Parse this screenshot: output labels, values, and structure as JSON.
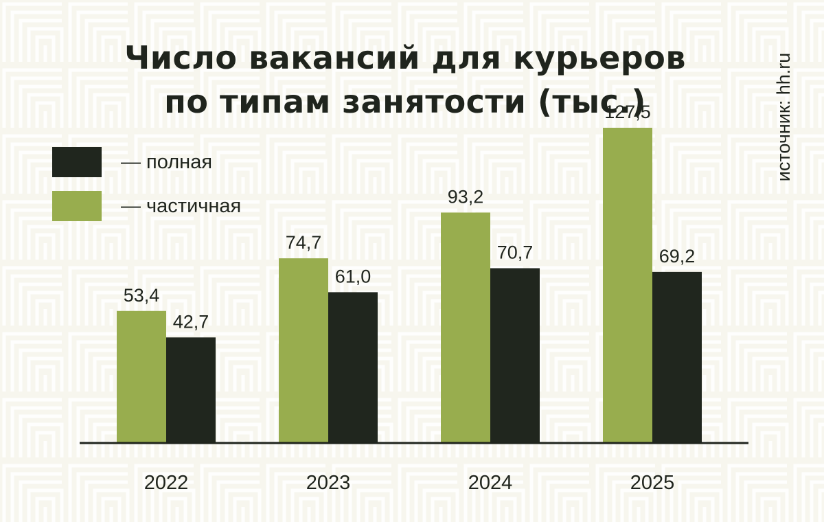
{
  "title_lines": [
    "Число вакансий для курьеров",
    "по типам занятости (тыс.)"
  ],
  "source": "источник: hh.ru",
  "colors": {
    "full": "#20261e",
    "partial": "#98ad4e",
    "background": "#f7f6ee",
    "pattern": "#ffffff"
  },
  "chart_data": {
    "type": "bar",
    "title": "Число вакансий для курьеров по типам занятости (тыс.)",
    "categories": [
      "2022",
      "2023",
      "2024",
      "2025"
    ],
    "series": [
      {
        "name": "— частичная",
        "key": "partial",
        "values": [
          53.4,
          74.7,
          93.2,
          127.5
        ],
        "labels": [
          "53,4",
          "74,7",
          "93,2",
          "127,5"
        ]
      },
      {
        "name": "— полная",
        "key": "full",
        "values": [
          42.7,
          61.0,
          70.7,
          69.2
        ],
        "labels": [
          "42,7",
          "61,0",
          "70,7",
          "69,2"
        ]
      }
    ],
    "legend_order": [
      "full",
      "partial"
    ],
    "ylim": [
      0,
      140
    ],
    "grid": false,
    "legend_position": "top-left"
  }
}
